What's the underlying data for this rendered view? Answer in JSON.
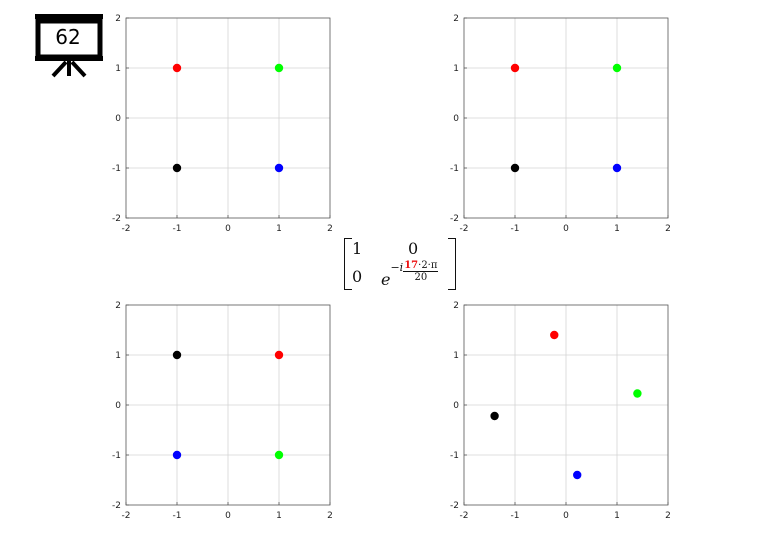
{
  "slide": {
    "number": "62"
  },
  "matrix": {
    "m11": "1",
    "m12": "0",
    "m21": "0",
    "m22": {
      "base": "e",
      "sign": "−i",
      "numerator_highlight": "17",
      "numerator_rest": "·2·π",
      "denominator": "20"
    }
  },
  "colors": {
    "red": "#ff0000",
    "green": "#00ff00",
    "blue": "#0000ff",
    "black": "#000000",
    "highlight": "#ee1111"
  },
  "chart_data": [
    {
      "type": "scatter",
      "title": "",
      "xlabel": "",
      "ylabel": "",
      "xlim": [
        -2,
        2
      ],
      "ylim": [
        -2,
        2
      ],
      "grid": true,
      "xticks": [
        "-2",
        "-1",
        "0",
        "1",
        "2"
      ],
      "yticks": [
        "2",
        "1",
        "0",
        "-1",
        "-2"
      ],
      "points": [
        {
          "x": -1,
          "y": 1,
          "color": "red"
        },
        {
          "x": 1,
          "y": 1,
          "color": "green"
        },
        {
          "x": -1,
          "y": -1,
          "color": "black"
        },
        {
          "x": 1,
          "y": -1,
          "color": "blue"
        }
      ]
    },
    {
      "type": "scatter",
      "title": "",
      "xlabel": "",
      "ylabel": "",
      "xlim": [
        -2,
        2
      ],
      "ylim": [
        -2,
        2
      ],
      "grid": true,
      "xticks": [
        "-2",
        "-1",
        "0",
        "1",
        "2"
      ],
      "yticks": [
        "2",
        "1",
        "0",
        "-1",
        "-2"
      ],
      "points": [
        {
          "x": -1,
          "y": 1,
          "color": "red"
        },
        {
          "x": 1,
          "y": 1,
          "color": "green"
        },
        {
          "x": -1,
          "y": -1,
          "color": "black"
        },
        {
          "x": 1,
          "y": -1,
          "color": "blue"
        }
      ]
    },
    {
      "type": "scatter",
      "title": "",
      "xlabel": "",
      "ylabel": "",
      "xlim": [
        -2,
        2
      ],
      "ylim": [
        -2,
        2
      ],
      "grid": true,
      "xticks": [
        "-2",
        "-1",
        "0",
        "1",
        "2"
      ],
      "yticks": [
        "2",
        "1",
        "0",
        "-1",
        "-2"
      ],
      "points": [
        {
          "x": -1,
          "y": 1,
          "color": "black"
        },
        {
          "x": 1,
          "y": 1,
          "color": "red"
        },
        {
          "x": -1,
          "y": -1,
          "color": "blue"
        },
        {
          "x": 1,
          "y": -1,
          "color": "green"
        }
      ]
    },
    {
      "type": "scatter",
      "title": "",
      "xlabel": "",
      "ylabel": "",
      "xlim": [
        -2,
        2
      ],
      "ylim": [
        -2,
        2
      ],
      "grid": true,
      "xticks": [
        "-2",
        "-1",
        "0",
        "1",
        "2"
      ],
      "yticks": [
        "2",
        "1",
        "0",
        "-1",
        "-2"
      ],
      "points": [
        {
          "x": -0.23,
          "y": 1.4,
          "color": "red"
        },
        {
          "x": 1.4,
          "y": 0.23,
          "color": "green"
        },
        {
          "x": -1.4,
          "y": -0.22,
          "color": "black"
        },
        {
          "x": 0.22,
          "y": -1.4,
          "color": "blue"
        }
      ]
    }
  ]
}
